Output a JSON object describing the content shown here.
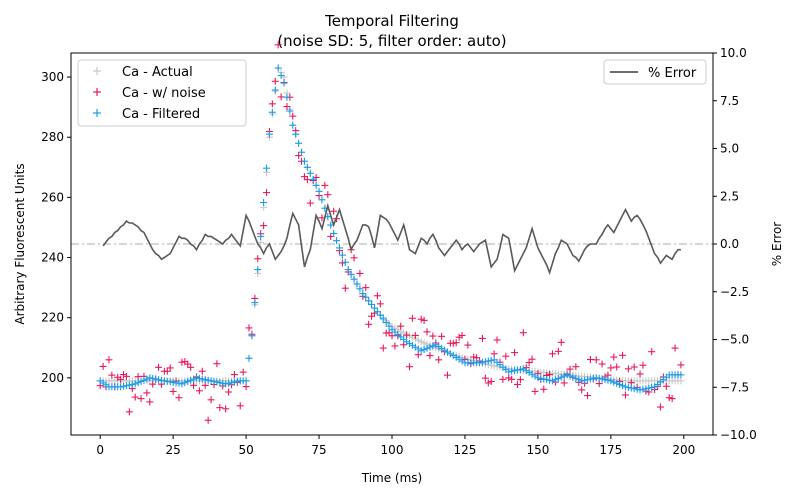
{
  "chart_data": {
    "type": "scatter",
    "title": "Temporal Filtering",
    "subtitle": "(noise SD: 5, filter order: auto)",
    "xlabel": "Time (ms)",
    "ylabel": "Arbitrary Fluorescent Units",
    "y2label": "% Error",
    "xlim": [
      -10,
      210
    ],
    "ylim": [
      181,
      308
    ],
    "y2lim": [
      -10,
      10
    ],
    "xticks": [
      0,
      25,
      50,
      75,
      100,
      125,
      150,
      175,
      200
    ],
    "yticks": [
      200,
      220,
      240,
      260,
      280,
      300
    ],
    "y2ticks": [
      -10,
      -7.5,
      -5,
      -2.5,
      0,
      2.5,
      5,
      7.5,
      10
    ],
    "y2tick_labels": [
      "−10.0",
      "−7.5",
      "−5.0",
      "−2.5",
      "0.0",
      "2.5",
      "5.0",
      "7.5",
      "10.0"
    ],
    "reference_line": {
      "axis": "y2",
      "value": 0,
      "style": "dash-dot",
      "color": "#c8c8c8"
    },
    "legend_left": {
      "position": "upper-left",
      "entries": [
        "Ca - Actual",
        "Ca - w/ noise",
        "Ca - Filtered"
      ]
    },
    "legend_right": {
      "position": "upper-right",
      "entries": [
        "% Error"
      ]
    },
    "series": [
      {
        "name": "Ca - Actual",
        "marker": "+",
        "color": "#c8c8c8",
        "axis": "y",
        "x": [],
        "values": []
      },
      {
        "name": "Ca - w/ noise",
        "marker": "+",
        "color": "#e8195a",
        "axis": "y",
        "x": [],
        "values": []
      },
      {
        "name": "Ca - Filtered",
        "marker": "+",
        "color": "#1e9be6",
        "axis": "y",
        "x": [],
        "values": []
      },
      {
        "name": "% Error",
        "marker": "line",
        "color": "#595959",
        "axis": "y2",
        "x": [],
        "values": []
      }
    ]
  }
}
